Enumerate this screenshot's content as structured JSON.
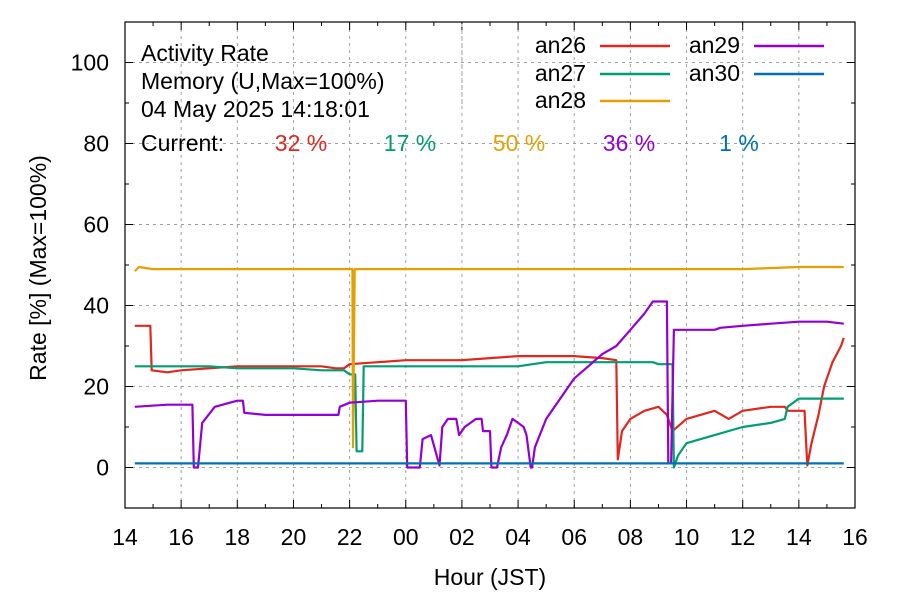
{
  "chart_data": {
    "type": "line",
    "title_lines": [
      "Activity Rate",
      "Memory (U,Max=100%)",
      "04 May 2025 14:18:01"
    ],
    "current_label": "Current:",
    "xlabel": "Hour (JST)",
    "ylabel": "Rate [%]  (Max=100%)",
    "x_ticks": [
      "14",
      "16",
      "18",
      "20",
      "22",
      "00",
      "02",
      "04",
      "06",
      "08",
      "10",
      "12",
      "14",
      "16"
    ],
    "y_ticks": [
      "0",
      "20",
      "40",
      "60",
      "80",
      "100"
    ],
    "xlim": [
      14.0,
      40.0
    ],
    "ylim": [
      -10,
      110
    ],
    "grid": true,
    "legend_position": "top-right",
    "series": [
      {
        "name": "an26",
        "color": "#e0271e",
        "current": "32 %",
        "points": [
          [
            14.35,
            35
          ],
          [
            14.9,
            35
          ],
          [
            14.95,
            24
          ],
          [
            15.5,
            23.5
          ],
          [
            16,
            24
          ],
          [
            17,
            24.5
          ],
          [
            18,
            25
          ],
          [
            19,
            25
          ],
          [
            20,
            25
          ],
          [
            21,
            25
          ],
          [
            21.5,
            24.5
          ],
          [
            21.8,
            24.5
          ],
          [
            22.0,
            25.5
          ],
          [
            23,
            26
          ],
          [
            24,
            26.5
          ],
          [
            25,
            26.5
          ],
          [
            26,
            26.5
          ],
          [
            27,
            27
          ],
          [
            28,
            27.5
          ],
          [
            29,
            27.5
          ],
          [
            30,
            27.5
          ],
          [
            31,
            27
          ],
          [
            31.5,
            26.5
          ],
          [
            31.55,
            2
          ],
          [
            31.7,
            9
          ],
          [
            32,
            12
          ],
          [
            32.5,
            14
          ],
          [
            33,
            15
          ],
          [
            33.3,
            13
          ],
          [
            33.5,
            9
          ],
          [
            34,
            12
          ],
          [
            35,
            14
          ],
          [
            35.5,
            12
          ],
          [
            36,
            14
          ],
          [
            37,
            15
          ],
          [
            37.5,
            15
          ],
          [
            37.6,
            14
          ],
          [
            37.7,
            14
          ],
          [
            38,
            14
          ],
          [
            38.2,
            14
          ],
          [
            38.3,
            0.5
          ],
          [
            38.45,
            6
          ],
          [
            38.7,
            13
          ],
          [
            38.9,
            20
          ],
          [
            39.2,
            26
          ],
          [
            39.5,
            30
          ],
          [
            39.6,
            32
          ]
        ]
      },
      {
        "name": "an27",
        "color": "#009e73",
        "current": "17 %",
        "points": [
          [
            14.35,
            25
          ],
          [
            16,
            25
          ],
          [
            17,
            25
          ],
          [
            18,
            24.5
          ],
          [
            19,
            24.5
          ],
          [
            20,
            24.5
          ],
          [
            21,
            24
          ],
          [
            21.8,
            24
          ],
          [
            22.0,
            23
          ],
          [
            22.2,
            23
          ],
          [
            22.25,
            4
          ],
          [
            22.45,
            4
          ],
          [
            22.5,
            25
          ],
          [
            23,
            25
          ],
          [
            24,
            25
          ],
          [
            25,
            25
          ],
          [
            26,
            25
          ],
          [
            27,
            25
          ],
          [
            28,
            25
          ],
          [
            29,
            26
          ],
          [
            30,
            26
          ],
          [
            31,
            26
          ],
          [
            32,
            26
          ],
          [
            32.8,
            26
          ],
          [
            33,
            25.5
          ],
          [
            33.5,
            25.5
          ],
          [
            33.55,
            0
          ],
          [
            33.7,
            3
          ],
          [
            34,
            6
          ],
          [
            35,
            8
          ],
          [
            36,
            10
          ],
          [
            37,
            11
          ],
          [
            37.5,
            12
          ],
          [
            37.6,
            15
          ],
          [
            38.0,
            17
          ],
          [
            38.5,
            17
          ],
          [
            39.6,
            17
          ]
        ]
      },
      {
        "name": "an28",
        "color": "#e69f00",
        "current": "50 %",
        "points": [
          [
            14.35,
            48.5
          ],
          [
            14.5,
            49.5
          ],
          [
            15,
            49
          ],
          [
            16,
            49
          ],
          [
            17,
            49
          ],
          [
            18,
            49
          ],
          [
            19,
            49
          ],
          [
            20,
            49
          ],
          [
            21,
            49
          ],
          [
            22,
            49
          ],
          [
            22.1,
            49
          ],
          [
            22.12,
            5
          ],
          [
            22.18,
            49
          ],
          [
            23,
            49
          ],
          [
            24,
            49
          ],
          [
            25,
            49
          ],
          [
            26,
            49
          ],
          [
            27,
            49
          ],
          [
            28,
            49
          ],
          [
            29,
            49
          ],
          [
            30,
            49
          ],
          [
            32,
            49
          ],
          [
            34,
            49
          ],
          [
            36,
            49
          ],
          [
            38,
            49.5
          ],
          [
            39.6,
            49.5
          ]
        ]
      },
      {
        "name": "an29",
        "color": "#9400d3",
        "current": "36 %",
        "points": [
          [
            14.35,
            15
          ],
          [
            15.5,
            15.5
          ],
          [
            16.4,
            15.5
          ],
          [
            16.45,
            0
          ],
          [
            16.6,
            0
          ],
          [
            16.75,
            11
          ],
          [
            17.2,
            15
          ],
          [
            18,
            16.5
          ],
          [
            18.2,
            16.5
          ],
          [
            18.25,
            13.5
          ],
          [
            19,
            13
          ],
          [
            20,
            13
          ],
          [
            21,
            13
          ],
          [
            21.6,
            13
          ],
          [
            21.65,
            15
          ],
          [
            22,
            16
          ],
          [
            23,
            16.5
          ],
          [
            24.0,
            16.5
          ],
          [
            24.05,
            0
          ],
          [
            24.5,
            0
          ],
          [
            24.6,
            7
          ],
          [
            24.9,
            8
          ],
          [
            25.2,
            0.5
          ],
          [
            25.3,
            10
          ],
          [
            25.5,
            12
          ],
          [
            25.8,
            12
          ],
          [
            25.9,
            8
          ],
          [
            26.1,
            10
          ],
          [
            26.5,
            12
          ],
          [
            26.7,
            12
          ],
          [
            26.75,
            9
          ],
          [
            27.0,
            9
          ],
          [
            27.05,
            0
          ],
          [
            27.25,
            0
          ],
          [
            27.4,
            5
          ],
          [
            27.6,
            8
          ],
          [
            27.8,
            12
          ],
          [
            28,
            11
          ],
          [
            28.2,
            10
          ],
          [
            28.3,
            8
          ],
          [
            28.45,
            0
          ],
          [
            28.5,
            0
          ],
          [
            28.6,
            5
          ],
          [
            29,
            12
          ],
          [
            29.5,
            17
          ],
          [
            30,
            22
          ],
          [
            30.5,
            25
          ],
          [
            31,
            28
          ],
          [
            31.5,
            30
          ],
          [
            32,
            34
          ],
          [
            32.5,
            38
          ],
          [
            32.8,
            41
          ],
          [
            33.3,
            41
          ],
          [
            33.35,
            1
          ],
          [
            33.45,
            1
          ],
          [
            33.55,
            34
          ],
          [
            34,
            34
          ],
          [
            35,
            34
          ],
          [
            35.2,
            34.5
          ],
          [
            36,
            35
          ],
          [
            37,
            35.5
          ],
          [
            38,
            36
          ],
          [
            39,
            36
          ],
          [
            39.6,
            35.5
          ]
        ]
      },
      {
        "name": "an30",
        "color": "#0072b2",
        "current": "1 %",
        "points": [
          [
            14.35,
            1
          ],
          [
            16,
            1
          ],
          [
            18,
            1
          ],
          [
            20,
            1
          ],
          [
            22,
            1
          ],
          [
            24,
            1
          ],
          [
            26,
            1
          ],
          [
            28,
            1
          ],
          [
            30,
            1
          ],
          [
            32,
            1
          ],
          [
            34,
            1
          ],
          [
            36,
            1
          ],
          [
            38,
            1
          ],
          [
            39.6,
            1
          ]
        ]
      }
    ]
  }
}
